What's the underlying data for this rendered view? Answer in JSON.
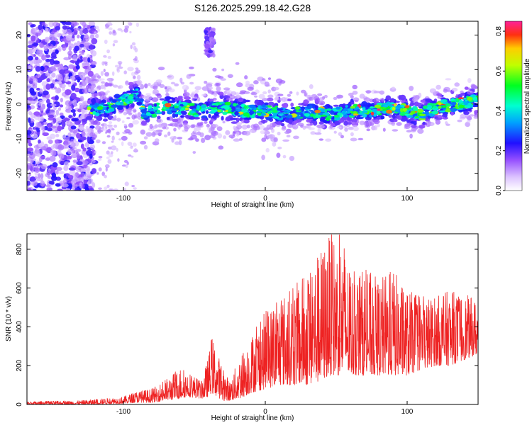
{
  "title": "S126.2025.299.18.42.G28",
  "colors": {
    "snr_line": "#ee2222",
    "spectro_bg": "#ffffff",
    "axis": "#000000"
  },
  "chart_data": [
    {
      "type": "heatmap",
      "name": "spectrogram",
      "xlabel": "Height of straight line (km)",
      "ylabel": "Frequency (Hz)",
      "xlim": [
        -168,
        150
      ],
      "ylim": [
        -25,
        24
      ],
      "xticks": [
        -100,
        0,
        100
      ],
      "xtick_labels": [
        "-100",
        "0",
        "100"
      ],
      "yticks": [
        -20,
        -10,
        0,
        10,
        20
      ],
      "ytick_labels": [
        "-20",
        "-10",
        "0",
        "10",
        "20"
      ],
      "ridge": {
        "x": [
          -125,
          -110,
          -95,
          -90,
          -85,
          -75,
          -60,
          -45,
          -30,
          -15,
          0,
          15,
          30,
          45,
          60,
          75,
          90,
          100,
          110,
          120,
          135,
          150
        ],
        "freq": [
          -2,
          -1,
          2,
          3,
          -3,
          -1,
          -1,
          -2,
          -1,
          -2,
          -2,
          -3,
          -2,
          -3,
          -2,
          -2,
          -1,
          -2,
          -3,
          -1,
          0,
          1
        ]
      },
      "burst": {
        "x_range": [
          -42,
          -36
        ],
        "freq_range": [
          14,
          22
        ]
      },
      "colorbar": {
        "label": "Normalized spectral amplitude",
        "range": [
          0,
          0.85
        ],
        "ticks": [
          0.0,
          0.2,
          0.4,
          0.6,
          0.8
        ],
        "tick_labels": [
          "0.0",
          "0.2",
          "0.4",
          "0.6",
          "0.8"
        ]
      }
    },
    {
      "type": "line",
      "name": "snr",
      "xlabel": "Height of straight line (km)",
      "ylabel": "SNR (10 * v/v)",
      "xlim": [
        -168,
        150
      ],
      "ylim": [
        0,
        880
      ],
      "xticks": [
        -100,
        0,
        100
      ],
      "xtick_labels": [
        "-100",
        "0",
        "100"
      ],
      "yticks": [
        0,
        200,
        400,
        600,
        800
      ],
      "ytick_labels": [
        "0",
        "200",
        "400",
        "600",
        "800"
      ],
      "envelope": {
        "x": [
          -168,
          -130,
          -100,
          -90,
          -80,
          -70,
          -60,
          -55,
          -45,
          -40,
          -38,
          -30,
          -25,
          -18,
          -10,
          0,
          10,
          20,
          30,
          40,
          45,
          50,
          55,
          60,
          70,
          80,
          90,
          100,
          110,
          120,
          130,
          140,
          150
        ],
        "low": [
          0,
          0,
          5,
          10,
          10,
          20,
          30,
          40,
          30,
          40,
          60,
          20,
          20,
          30,
          60,
          80,
          100,
          100,
          100,
          120,
          150,
          150,
          150,
          150,
          150,
          150,
          150,
          150,
          180,
          200,
          200,
          230,
          260
        ],
        "high": [
          15,
          20,
          40,
          70,
          80,
          130,
          190,
          175,
          120,
          250,
          360,
          190,
          120,
          250,
          360,
          480,
          560,
          610,
          700,
          820,
          880,
          870,
          880,
          680,
          700,
          650,
          700,
          590,
          560,
          560,
          590,
          570,
          540
        ]
      }
    }
  ]
}
